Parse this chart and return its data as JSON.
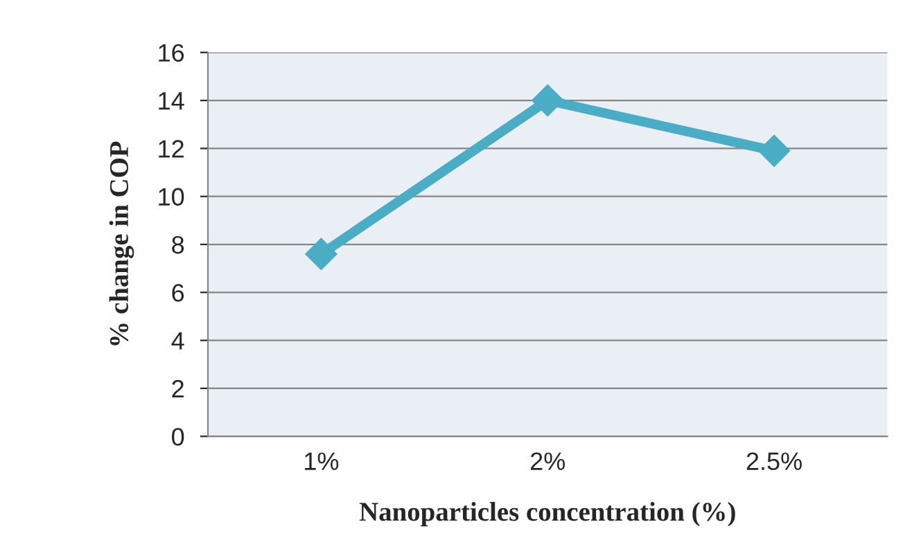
{
  "chart_data": {
    "type": "line",
    "xlabel": "Nanoparticles concentration (%)",
    "ylabel": "% change in COP",
    "categories": [
      "1%",
      "2%",
      "2.5%"
    ],
    "series": [
      {
        "color": "#4bacc6",
        "values": [
          7.6,
          14,
          11.9
        ]
      }
    ],
    "ylim": [
      0,
      16
    ],
    "yticks": [
      0,
      2,
      4,
      6,
      8,
      10,
      12,
      14,
      16
    ],
    "grid": "y",
    "marker": "diamond",
    "line_style": "solid",
    "legend": false
  }
}
